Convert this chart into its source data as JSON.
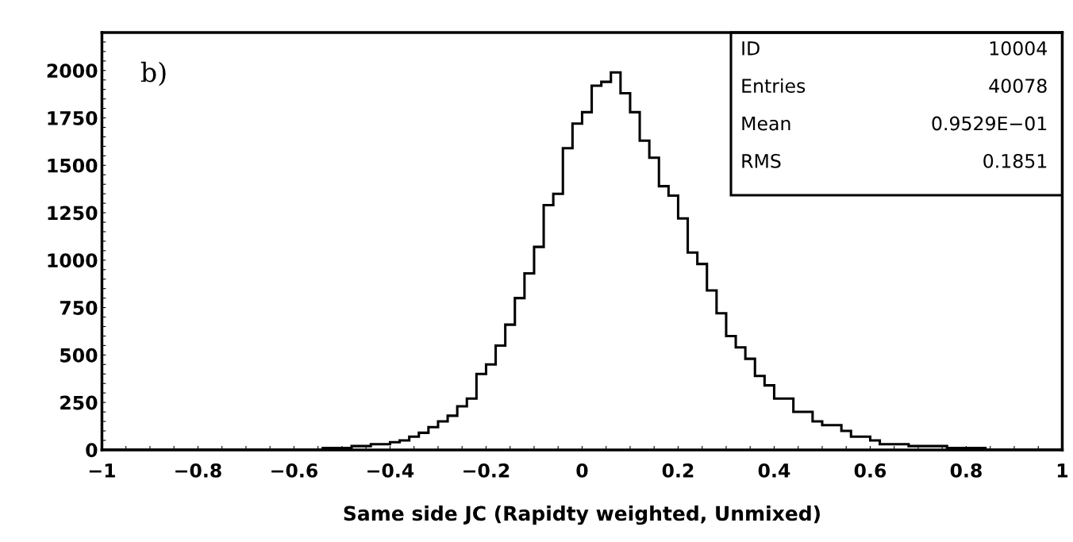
{
  "chart_data": {
    "type": "histogram",
    "xlabel": "Same side JC (Rapidty weighted, Unmixed)",
    "annotations": [
      "b)",
      "ID",
      "10004",
      "Entries",
      "40078",
      "Mean",
      "0.9529E−01",
      "RMS",
      "0.1851"
    ],
    "color": "#000000",
    "bins": [
      -1.0,
      -0.98,
      -0.96,
      -0.94,
      -0.92,
      -0.9,
      -0.88,
      -0.86,
      -0.84,
      -0.82,
      -0.8,
      -0.78,
      -0.76,
      -0.74,
      -0.72,
      -0.7,
      -0.68,
      -0.66,
      -0.64,
      -0.62,
      -0.6,
      -0.58,
      -0.56,
      -0.54,
      -0.52,
      -0.5,
      -0.48,
      -0.46,
      -0.44,
      -0.42,
      -0.4,
      -0.38,
      -0.36,
      -0.34,
      -0.32,
      -0.3,
      -0.28,
      -0.26,
      -0.24,
      -0.22,
      -0.2,
      -0.18,
      -0.16,
      -0.14,
      -0.12,
      -0.1,
      -0.08,
      -0.06,
      -0.04,
      -0.02,
      0.0,
      0.02,
      0.04,
      0.06,
      0.08,
      0.1,
      0.12,
      0.14,
      0.16,
      0.18,
      0.2,
      0.22,
      0.24,
      0.26,
      0.28,
      0.3,
      0.32,
      0.34,
      0.36,
      0.38,
      0.4,
      0.42,
      0.44,
      0.46,
      0.48,
      0.5,
      0.52,
      0.54,
      0.56,
      0.58,
      0.6,
      0.62,
      0.64,
      0.66,
      0.68,
      0.7,
      0.72,
      0.74,
      0.76,
      0.78,
      0.8,
      0.82,
      0.84,
      0.86,
      0.88,
      0.9,
      0.92,
      0.94,
      0.96,
      0.98,
      1.0
    ],
    "values": [
      0,
      0,
      0,
      0,
      0,
      0,
      0,
      0,
      0,
      0,
      0,
      0,
      0,
      0,
      0,
      0,
      0,
      0,
      0,
      0,
      0,
      0,
      0,
      10,
      10,
      10,
      20,
      20,
      30,
      30,
      40,
      50,
      70,
      90,
      120,
      150,
      180,
      230,
      270,
      400,
      450,
      550,
      660,
      800,
      930,
      1070,
      1290,
      1350,
      1590,
      1720,
      1780,
      1920,
      1940,
      1990,
      1880,
      1780,
      1630,
      1540,
      1390,
      1340,
      1220,
      1040,
      980,
      840,
      720,
      600,
      540,
      480,
      390,
      340,
      270,
      270,
      200,
      200,
      150,
      130,
      130,
      100,
      70,
      70,
      50,
      30,
      30,
      30,
      20,
      20,
      20,
      20,
      10,
      10,
      10,
      10,
      0,
      0,
      0,
      0,
      0,
      0,
      0,
      0
    ],
    "xlim": [
      -1,
      1
    ],
    "ylim": [
      0,
      2200
    ],
    "xticks": [
      {
        "value": -1,
        "label": "−1"
      },
      {
        "value": -0.95,
        "label": null
      },
      {
        "value": -0.9,
        "label": null
      },
      {
        "value": -0.85,
        "label": null
      },
      {
        "value": -0.8,
        "label": "−0.8"
      },
      {
        "value": -0.75,
        "label": null
      },
      {
        "value": -0.7,
        "label": null
      },
      {
        "value": -0.65,
        "label": null
      },
      {
        "value": -0.6,
        "label": "−0.6"
      },
      {
        "value": -0.55,
        "label": null
      },
      {
        "value": -0.5,
        "label": null
      },
      {
        "value": -0.45,
        "label": null
      },
      {
        "value": -0.4,
        "label": "−0.4"
      },
      {
        "value": -0.35,
        "label": null
      },
      {
        "value": -0.3,
        "label": null
      },
      {
        "value": -0.25,
        "label": null
      },
      {
        "value": -0.2,
        "label": "−0.2"
      },
      {
        "value": -0.15,
        "label": null
      },
      {
        "value": -0.1,
        "label": null
      },
      {
        "value": -0.05,
        "label": null
      },
      0,
      {
        "value": 0.05,
        "label": null
      },
      {
        "value": 0.1,
        "label": null
      },
      {
        "value": 0.15,
        "label": null
      },
      0.2,
      {
        "value": 0.25,
        "label": null
      },
      {
        "value": 0.3,
        "label": null
      },
      {
        "value": 0.35,
        "label": null
      },
      0.4,
      {
        "value": 0.45,
        "label": null
      },
      {
        "value": 0.5,
        "label": null
      },
      {
        "value": 0.55,
        "label": null
      },
      0.6,
      {
        "value": 0.65,
        "label": null
      },
      {
        "value": 0.7,
        "label": null
      },
      {
        "value": 0.75,
        "label": null
      },
      0.8,
      {
        "value": 0.85,
        "label": null
      },
      {
        "value": 0.9,
        "label": null
      },
      {
        "value": 0.95,
        "label": null
      },
      1
    ],
    "yticks": [
      0,
      {
        "value": 50,
        "label": null
      },
      {
        "value": 100,
        "label": null
      },
      {
        "value": 150,
        "label": null
      },
      {
        "value": 200,
        "label": null
      },
      250,
      {
        "value": 300,
        "label": null
      },
      {
        "value": 350,
        "label": null
      },
      {
        "value": 400,
        "label": null
      },
      {
        "value": 450,
        "label": null
      },
      500,
      {
        "value": 550,
        "label": null
      },
      {
        "value": 600,
        "label": null
      },
      {
        "value": 650,
        "label": null
      },
      {
        "value": 700,
        "label": null
      },
      750,
      {
        "value": 800,
        "label": null
      },
      {
        "value": 850,
        "label": null
      },
      {
        "value": 900,
        "label": null
      },
      {
        "value": 950,
        "label": null
      },
      1000,
      {
        "value": 1050,
        "label": null
      },
      {
        "value": 1100,
        "label": null
      },
      {
        "value": 1150,
        "label": null
      },
      {
        "value": 1200,
        "label": null
      },
      1250,
      {
        "value": 1300,
        "label": null
      },
      {
        "value": 1350,
        "label": null
      },
      {
        "value": 1400,
        "label": null
      },
      {
        "value": 1450,
        "label": null
      },
      1500,
      {
        "value": 1550,
        "label": null
      },
      {
        "value": 1600,
        "label": null
      },
      {
        "value": 1650,
        "label": null
      },
      {
        "value": 1700,
        "label": null
      },
      1750,
      {
        "value": 1800,
        "label": null
      },
      {
        "value": 1850,
        "label": null
      },
      {
        "value": 1900,
        "label": null
      },
      {
        "value": 1950,
        "label": null
      },
      2000,
      {
        "value": 2050,
        "label": null
      },
      {
        "value": 2100,
        "label": null
      },
      {
        "value": 2150,
        "label": null
      }
    ]
  }
}
